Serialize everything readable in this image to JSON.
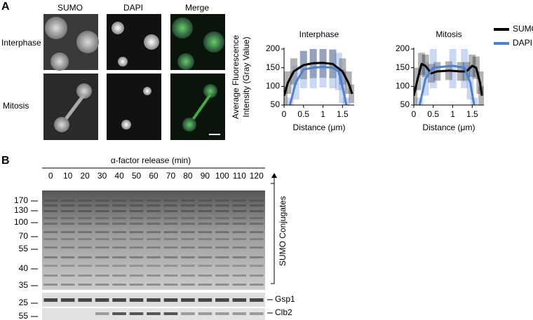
{
  "panel_a": {
    "label": "A",
    "image_columns": [
      "SUMO",
      "DAPI",
      "Merge"
    ],
    "image_rows": [
      "Interphase",
      "Mitosis"
    ]
  },
  "chart_data": [
    {
      "type": "line",
      "title": "Interphase",
      "y_label": [
        "Average Fluorescence",
        "Intensity (Gray Value)"
      ],
      "x_label": "Distance (μm)",
      "xlim": [
        0,
        1.8
      ],
      "ylim": [
        50,
        200
      ],
      "xticks": [
        0,
        0.5,
        1,
        1.5
      ],
      "yticks": [
        50,
        100,
        150,
        200
      ],
      "series": [
        {
          "name": "SUMO",
          "color": "#000000",
          "x": [
            0,
            0.1,
            0.25,
            0.5,
            0.75,
            1,
            1.25,
            1.5,
            1.65,
            1.75
          ],
          "values": [
            75,
            110,
            140,
            157,
            162,
            163,
            160,
            140,
            110,
            80
          ],
          "errors": [
            25,
            30,
            35,
            38,
            40,
            40,
            38,
            35,
            30,
            25
          ]
        },
        {
          "name": "DAPI",
          "color": "#4f7fd0",
          "x": [
            0.15,
            0.3,
            0.5,
            0.75,
            1,
            1.25,
            1.4,
            1.5,
            1.6
          ],
          "values": [
            50,
            110,
            145,
            150,
            152,
            150,
            140,
            100,
            50
          ],
          "errors": [
            20,
            45,
            50,
            55,
            55,
            55,
            50,
            45,
            20
          ]
        }
      ]
    },
    {
      "type": "line",
      "title": "Mitosis",
      "x_label": "Distance (μm)",
      "xlim": [
        0,
        1.8
      ],
      "ylim": [
        50,
        200
      ],
      "xticks": [
        0,
        0.5,
        1,
        1.5
      ],
      "yticks": [
        50,
        100,
        150,
        200
      ],
      "series": [
        {
          "name": "SUMO",
          "color": "#000000",
          "x": [
            0,
            0.1,
            0.2,
            0.3,
            0.45,
            0.6,
            0.9,
            1.2,
            1.35,
            1.5,
            1.6,
            1.7,
            1.75
          ],
          "values": [
            75,
            120,
            160,
            155,
            135,
            140,
            142,
            140,
            140,
            155,
            150,
            110,
            75
          ],
          "errors": [
            25,
            30,
            30,
            30,
            25,
            25,
            25,
            25,
            25,
            30,
            30,
            30,
            25
          ]
        },
        {
          "name": "DAPI",
          "color": "#4f7fd0",
          "x": [
            0.15,
            0.3,
            0.5,
            1,
            1.3,
            1.45,
            1.55
          ],
          "values": [
            50,
            120,
            150,
            155,
            150,
            110,
            50
          ],
          "errors": [
            20,
            45,
            55,
            60,
            55,
            45,
            20
          ]
        }
      ]
    }
  ],
  "panel_b": {
    "label": "B",
    "title": "α-factor release (min)",
    "lanes": [
      0,
      10,
      20,
      30,
      40,
      50,
      60,
      70,
      80,
      90,
      100,
      110,
      120
    ],
    "mw_markers": [
      170,
      130,
      100,
      70,
      55,
      40,
      35,
      25,
      55
    ],
    "bracket_label": "SUMO Conjugates",
    "blots": [
      "Gsp1",
      "Clb2"
    ]
  }
}
